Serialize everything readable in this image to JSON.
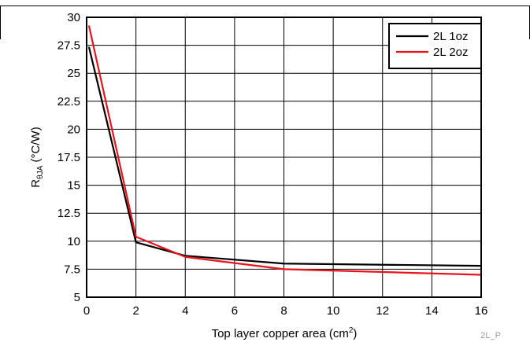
{
  "chart_data": {
    "type": "line",
    "xlabel_main": "Top layer copper area (cm",
    "xlabel_sup": "2",
    "xlabel_end": ")",
    "ylabel_main": "R",
    "ylabel_sub": "θJA",
    "ylabel_units": " (°C/W)",
    "xlim": [
      0,
      16
    ],
    "ylim": [
      5,
      30
    ],
    "x_ticks": [
      0,
      2,
      4,
      6,
      8,
      10,
      12,
      14,
      16
    ],
    "x_tick_labels": [
      "0",
      "2",
      "4",
      "6",
      "8",
      "10",
      "12",
      "14",
      "16"
    ],
    "y_ticks": [
      5,
      7.5,
      10,
      12.5,
      15,
      17.5,
      20,
      22.5,
      25,
      27.5,
      30
    ],
    "y_tick_labels": [
      "5",
      "7.5",
      "10",
      "12.5",
      "15",
      "17.5",
      "20",
      "22.5",
      "25",
      "27.5",
      "30"
    ],
    "grid": true,
    "legend_position": "top-right",
    "series": [
      {
        "name": "2L 1oz",
        "color": "#000000",
        "x": [
          0.1,
          2,
          4,
          8,
          16
        ],
        "y": [
          27.3,
          9.9,
          8.7,
          8.0,
          7.8
        ]
      },
      {
        "name": "2L 2oz",
        "color": "#e8141c",
        "x": [
          0.1,
          2,
          4,
          8,
          16
        ],
        "y": [
          29.2,
          10.4,
          8.6,
          7.5,
          7.0
        ]
      }
    ]
  },
  "figure_id": "2L_P"
}
